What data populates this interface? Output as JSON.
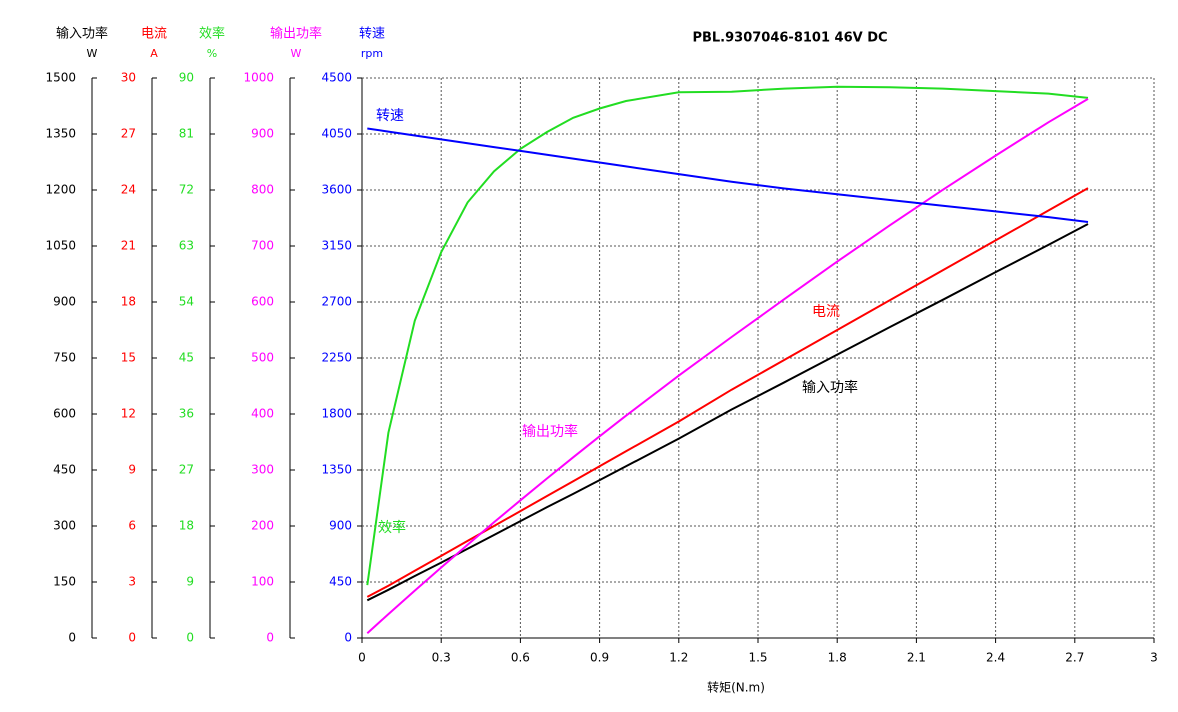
{
  "chart_data": {
    "type": "line",
    "title": "PBL.9307046-8101    46V DC",
    "x_label": "转矩(N.m)",
    "x": [
      0.02,
      0.1,
      0.2,
      0.3,
      0.4,
      0.5,
      0.6,
      0.7,
      0.8,
      0.9,
      1.0,
      1.2,
      1.4,
      1.6,
      1.8,
      2.0,
      2.2,
      2.4,
      2.6,
      2.75
    ],
    "xlim": [
      0,
      3
    ],
    "xticks": [
      0,
      0.3,
      0.6,
      0.9,
      1.2,
      1.5,
      1.8,
      2.1,
      2.4,
      2.7,
      3
    ],
    "grid": true,
    "y_axes": [
      {
        "label": "输入功率",
        "unit": "W",
        "color": "#000000",
        "ylim": [
          0,
          1500
        ],
        "yticks": [
          0,
          150,
          300,
          450,
          600,
          750,
          900,
          1050,
          1200,
          1350,
          1500
        ]
      },
      {
        "label": "电流",
        "unit": "A",
        "color": "#ff0000",
        "ylim": [
          0,
          30
        ],
        "yticks": [
          0,
          3,
          6,
          9,
          12,
          15,
          18,
          21,
          24,
          27,
          30
        ]
      },
      {
        "label": "效率",
        "unit": "%",
        "color": "#22dd22",
        "ylim": [
          0,
          90
        ],
        "yticks": [
          0,
          9,
          18,
          27,
          36,
          45,
          54,
          63,
          72,
          81,
          90
        ]
      },
      {
        "label": "输出功率",
        "unit": "W",
        "color": "#ff00ff",
        "ylim": [
          0,
          1000
        ],
        "yticks": [
          0,
          100,
          200,
          300,
          400,
          500,
          600,
          700,
          800,
          900,
          1000
        ]
      },
      {
        "label": "转速",
        "unit": "rpm",
        "color": "#0000ff",
        "ylim": [
          0,
          4500
        ],
        "yticks": [
          0,
          450,
          900,
          1350,
          1800,
          2250,
          2700,
          3150,
          3600,
          4050,
          4500
        ]
      }
    ],
    "series": [
      {
        "name": "输入功率",
        "color": "#000000",
        "axis": 0,
        "values": [
          101,
          129,
          166,
          202,
          239,
          276,
          313,
          350,
          386,
          423,
          460,
          534,
          612,
          685,
          759,
          833,
          906,
          980,
          1053,
          1109
        ]
      },
      {
        "name": "电流",
        "color": "#ff0000",
        "axis": 1,
        "values": [
          2.2,
          2.8,
          3.6,
          4.4,
          5.2,
          6.0,
          6.8,
          7.6,
          8.4,
          9.2,
          10.0,
          11.6,
          13.3,
          14.9,
          16.5,
          18.1,
          19.7,
          21.3,
          22.9,
          24.1
        ]
      },
      {
        "name": "效率",
        "color": "#22dd22",
        "axis": 2,
        "values": [
          8.5,
          33,
          51,
          62,
          70,
          75,
          78.6,
          81.3,
          83.6,
          85.1,
          86.3,
          87.7,
          87.8,
          88.3,
          88.6,
          88.5,
          88.3,
          87.9,
          87.5,
          86.8
        ]
      },
      {
        "name": "输出功率",
        "color": "#ff00ff",
        "axis": 3,
        "values": [
          8.6,
          42.6,
          84.6,
          125.9,
          166.5,
          206.6,
          245.9,
          284.6,
          322.7,
          360.1,
          396.9,
          468.5,
          537.5,
          605.2,
          672.2,
          737.2,
          800.3,
          861.5,
          920.9,
          962.7
        ]
      },
      {
        "name": "转速",
        "color": "#0000ff",
        "axis": 4,
        "values": [
          4094,
          4069,
          4038,
          4007,
          3976,
          3945,
          3914,
          3883,
          3852,
          3821,
          3790,
          3728,
          3666,
          3612,
          3566,
          3520,
          3474,
          3428,
          3382,
          3343
        ]
      }
    ]
  }
}
